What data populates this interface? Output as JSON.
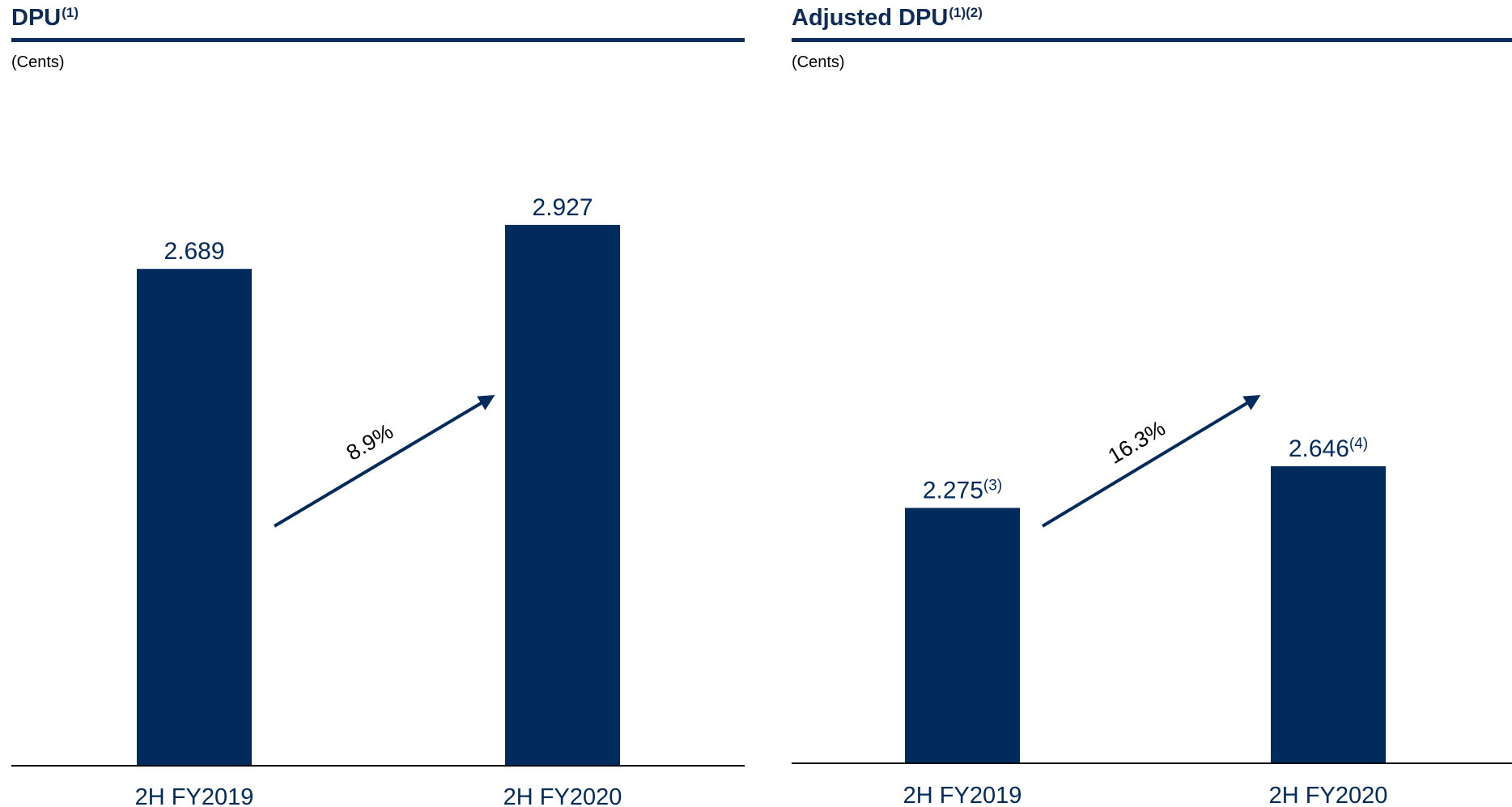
{
  "colors": {
    "bar": "#002b5c",
    "title": "#0e2c57",
    "text": "#000000"
  },
  "chart_data": [
    {
      "type": "bar",
      "title": "DPU",
      "title_note": "(1)",
      "unit": "(Cents)",
      "categories": [
        "2H FY2019",
        "2H FY2020"
      ],
      "values": [
        2.689,
        2.927
      ],
      "value_labels": [
        "2.689",
        "2.927"
      ],
      "value_notes": [
        "",
        ""
      ],
      "growth_label": "8.9%",
      "ylim": [
        0,
        3.22
      ],
      "grid": false,
      "legend": "none"
    },
    {
      "type": "bar",
      "title": "Adjusted DPU",
      "title_note": "(1)(2)",
      "unit": "(Cents)",
      "categories": [
        "2H FY2019",
        "2H FY2020"
      ],
      "values": [
        2.275,
        2.646
      ],
      "value_labels": [
        "2.275",
        "2.646"
      ],
      "value_notes": [
        "(3)",
        "(4)"
      ],
      "growth_label": "16.3%",
      "ylim": [
        0,
        5.3
      ],
      "grid": false,
      "legend": "none"
    }
  ]
}
